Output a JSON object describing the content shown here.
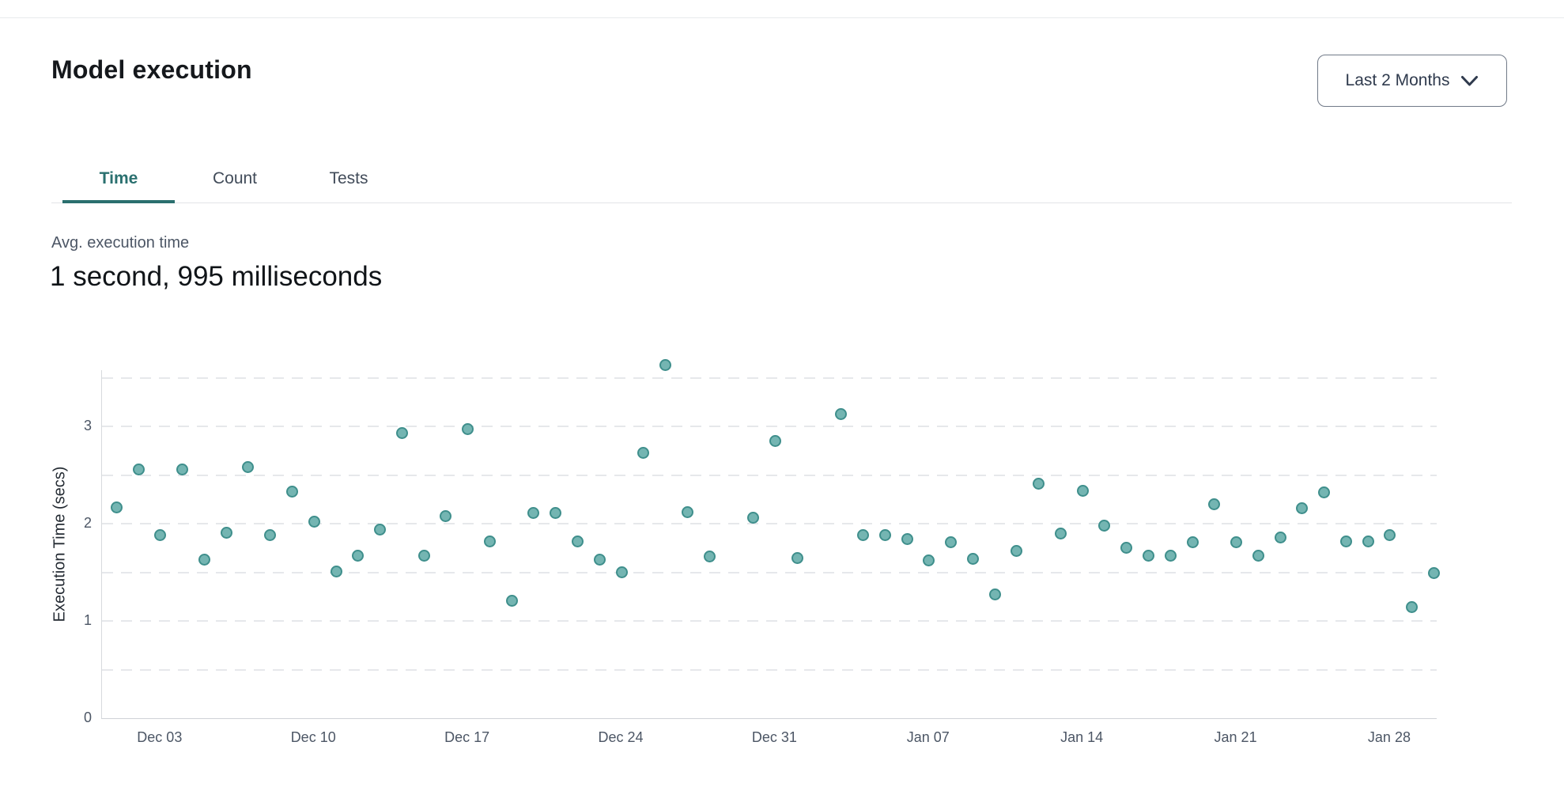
{
  "header": {
    "title": "Model execution",
    "range_selector_label": "Last 2 Months"
  },
  "tabs": [
    {
      "label": "Time",
      "active": true
    },
    {
      "label": "Count",
      "active": false
    },
    {
      "label": "Tests",
      "active": false
    }
  ],
  "stat": {
    "label": "Avg. execution time",
    "value": "1 second, 995 milliseconds"
  },
  "chart_data": {
    "type": "scatter",
    "ylabel": "Execution Time (secs)",
    "xlabel": "",
    "ylim": [
      0,
      3.58
    ],
    "y_ticks": [
      0,
      1,
      2,
      3
    ],
    "grid": "horizontal dashed lines every 0.5 from 0.5 to 3.5",
    "legend": "none",
    "x_axis": "daily dates from Dec 01 to Jan 30 (no points on Dec 29 and Jan 02)",
    "x_tick_labels": [
      "Dec 03",
      "Dec 10",
      "Dec 17",
      "Dec 24",
      "Dec 31",
      "Jan 07",
      "Jan 14",
      "Jan 21",
      "Jan 28"
    ],
    "x_tick_day_index": [
      2,
      9,
      16,
      23,
      30,
      37,
      44,
      51,
      58
    ],
    "colors": {
      "point_fill": "#74b5b2",
      "point_stroke": "#3f8f8c",
      "accent_teal": "#2a6f6e"
    },
    "points": [
      {
        "date": "Dec 01",
        "value": 2.17
      },
      {
        "date": "Dec 02",
        "value": 2.56
      },
      {
        "date": "Dec 03",
        "value": 1.88
      },
      {
        "date": "Dec 04",
        "value": 2.56
      },
      {
        "date": "Dec 05",
        "value": 1.63
      },
      {
        "date": "Dec 06",
        "value": 1.91
      },
      {
        "date": "Dec 07",
        "value": 2.58
      },
      {
        "date": "Dec 08",
        "value": 1.88
      },
      {
        "date": "Dec 09",
        "value": 2.33
      },
      {
        "date": "Dec 10",
        "value": 2.02
      },
      {
        "date": "Dec 11",
        "value": 1.51
      },
      {
        "date": "Dec 12",
        "value": 1.67
      },
      {
        "date": "Dec 13",
        "value": 1.94
      },
      {
        "date": "Dec 14",
        "value": 2.93
      },
      {
        "date": "Dec 15",
        "value": 1.67
      },
      {
        "date": "Dec 16",
        "value": 2.08
      },
      {
        "date": "Dec 17",
        "value": 2.97
      },
      {
        "date": "Dec 18",
        "value": 1.82
      },
      {
        "date": "Dec 19",
        "value": 1.21
      },
      {
        "date": "Dec 20",
        "value": 2.11
      },
      {
        "date": "Dec 21",
        "value": 2.11
      },
      {
        "date": "Dec 22",
        "value": 1.82
      },
      {
        "date": "Dec 23",
        "value": 1.63
      },
      {
        "date": "Dec 24",
        "value": 1.5
      },
      {
        "date": "Dec 25",
        "value": 2.73
      },
      {
        "date": "Dec 26",
        "value": 3.63
      },
      {
        "date": "Dec 27",
        "value": 2.12
      },
      {
        "date": "Dec 28",
        "value": 1.66
      },
      {
        "date": "Dec 30",
        "value": 2.06
      },
      {
        "date": "Dec 31",
        "value": 2.85
      },
      {
        "date": "Jan 01",
        "value": 1.65
      },
      {
        "date": "Jan 03",
        "value": 3.13
      },
      {
        "date": "Jan 04",
        "value": 1.88
      },
      {
        "date": "Jan 05",
        "value": 1.88
      },
      {
        "date": "Jan 06",
        "value": 1.84
      },
      {
        "date": "Jan 07",
        "value": 1.62
      },
      {
        "date": "Jan 08",
        "value": 1.81
      },
      {
        "date": "Jan 09",
        "value": 1.64
      },
      {
        "date": "Jan 10",
        "value": 1.27
      },
      {
        "date": "Jan 11",
        "value": 1.72
      },
      {
        "date": "Jan 12",
        "value": 2.41
      },
      {
        "date": "Jan 13",
        "value": 1.9
      },
      {
        "date": "Jan 14",
        "value": 2.34
      },
      {
        "date": "Jan 15",
        "value": 1.98
      },
      {
        "date": "Jan 16",
        "value": 1.75
      },
      {
        "date": "Jan 17",
        "value": 1.67
      },
      {
        "date": "Jan 18",
        "value": 1.67
      },
      {
        "date": "Jan 19",
        "value": 1.81
      },
      {
        "date": "Jan 20",
        "value": 2.2
      },
      {
        "date": "Jan 21",
        "value": 1.81
      },
      {
        "date": "Jan 22",
        "value": 1.67
      },
      {
        "date": "Jan 23",
        "value": 1.86
      },
      {
        "date": "Jan 24",
        "value": 2.16
      },
      {
        "date": "Jan 25",
        "value": 2.32
      },
      {
        "date": "Jan 26",
        "value": 1.82
      },
      {
        "date": "Jan 27",
        "value": 1.82
      },
      {
        "date": "Jan 28",
        "value": 1.88
      },
      {
        "date": "Jan 29",
        "value": 1.14
      },
      {
        "date": "Jan 30",
        "value": 1.49
      }
    ]
  }
}
